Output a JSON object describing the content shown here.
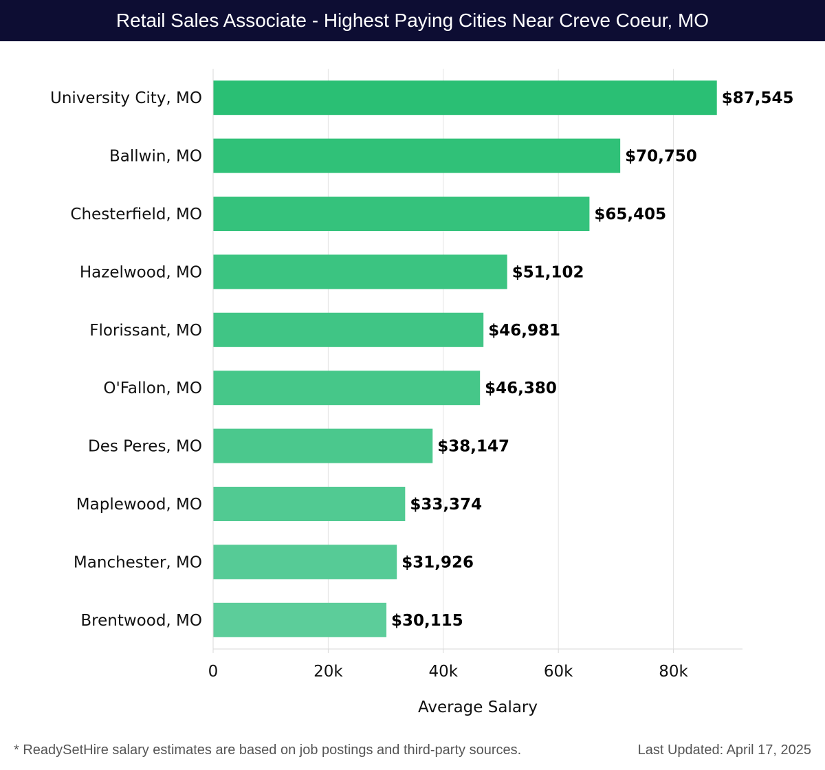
{
  "chart_data": {
    "type": "bar",
    "orientation": "horizontal",
    "title": "Retail Sales Associate - Highest Paying Cities Near Creve Coeur, MO",
    "xlabel": "Average Salary",
    "ylabel": "",
    "categories": [
      "University City, MO",
      "Ballwin, MO",
      "Chesterfield, MO",
      "Hazelwood, MO",
      "Florissant, MO",
      "O'Fallon, MO",
      "Des Peres, MO",
      "Maplewood, MO",
      "Manchester, MO",
      "Brentwood, MO"
    ],
    "values": [
      87545,
      70750,
      65405,
      51102,
      46981,
      46380,
      38147,
      33374,
      31926,
      30115
    ],
    "value_labels": [
      "$87,545",
      "$70,750",
      "$65,405",
      "$51,102",
      "$46,981",
      "$46,380",
      "$38,147",
      "$33,374",
      "$31,926",
      "$30,115"
    ],
    "xlim": [
      0,
      92000
    ],
    "xticks": [
      0,
      20000,
      40000,
      60000,
      80000
    ],
    "xtick_labels": [
      "0",
      "20k",
      "40k",
      "60k",
      "80k"
    ],
    "grid": true,
    "legend": "none",
    "colors": {
      "bar_top": "#2abf74",
      "bar_bottom": "#5ccd9a",
      "grid": "#e3e3e3",
      "header_bg": "#0d0d33"
    }
  },
  "footer": {
    "note": "* ReadySetHire salary estimates are based on job postings and third-party sources.",
    "updated": "Last Updated: April 17, 2025"
  }
}
